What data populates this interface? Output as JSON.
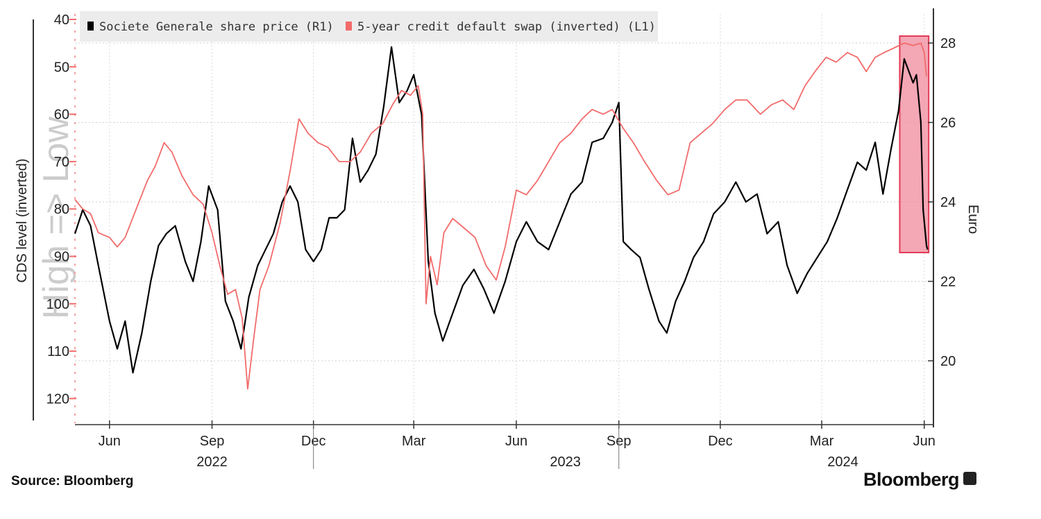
{
  "chart_data": {
    "type": "line",
    "axes": {
      "left": {
        "label": "CDS level (inverted)",
        "inverted": true,
        "range": [
          40,
          125
        ],
        "ticks": [
          40,
          50,
          60,
          70,
          80,
          90,
          100,
          110,
          120
        ]
      },
      "right": {
        "label": "Euro",
        "range": [
          18.2,
          28.8
        ],
        "ticks": [
          20,
          22,
          24,
          26,
          28
        ]
      },
      "x": {
        "range": [
          "2022-05-01",
          "2024-06-08"
        ],
        "month_ticks": [
          {
            "date": "2022-06-01",
            "label": "Jun"
          },
          {
            "date": "2022-09-01",
            "label": "Sep"
          },
          {
            "date": "2022-12-01",
            "label": "Dec"
          },
          {
            "date": "2023-03-01",
            "label": "Mar"
          },
          {
            "date": "2023-06-01",
            "label": "Jun"
          },
          {
            "date": "2023-09-01",
            "label": "Sep"
          },
          {
            "date": "2023-12-01",
            "label": "Dec"
          },
          {
            "date": "2024-03-01",
            "label": "Mar"
          },
          {
            "date": "2024-06-01",
            "label": "Jun"
          }
        ],
        "year_labels": [
          {
            "date": "2022-09-01",
            "label": "2022"
          },
          {
            "date": "2023-07-15",
            "label": "2023"
          },
          {
            "date": "2024-03-20",
            "label": "2024"
          }
        ],
        "year_dividers": [
          "2022-12-01",
          "2023-09-01"
        ]
      }
    },
    "watermark": "High => Low",
    "legend": {
      "placement": "top-left"
    },
    "grid": true,
    "highlight": {
      "x_range": [
        "2024-05-10",
        "2024-06-05"
      ],
      "color": "#f08a9c"
    },
    "series": [
      {
        "name": "Societe Generale share price (R1)",
        "axis": "right",
        "color": "#000000",
        "points": [
          [
            "2022-05-01",
            23.2
          ],
          [
            "2022-05-08",
            23.8
          ],
          [
            "2022-05-15",
            23.4
          ],
          [
            "2022-05-22",
            22.4
          ],
          [
            "2022-06-01",
            21.0
          ],
          [
            "2022-06-08",
            20.3
          ],
          [
            "2022-06-15",
            21.0
          ],
          [
            "2022-06-22",
            19.7
          ],
          [
            "2022-06-30",
            20.7
          ],
          [
            "2022-07-08",
            22.0
          ],
          [
            "2022-07-15",
            22.9
          ],
          [
            "2022-07-22",
            23.2
          ],
          [
            "2022-07-30",
            23.4
          ],
          [
            "2022-08-08",
            22.5
          ],
          [
            "2022-08-15",
            22.0
          ],
          [
            "2022-08-22",
            23.0
          ],
          [
            "2022-08-29",
            24.4
          ],
          [
            "2022-09-06",
            23.8
          ],
          [
            "2022-09-13",
            21.5
          ],
          [
            "2022-09-20",
            21.0
          ],
          [
            "2022-09-27",
            20.3
          ],
          [
            "2022-10-04",
            21.6
          ],
          [
            "2022-10-12",
            22.4
          ],
          [
            "2022-10-19",
            22.8
          ],
          [
            "2022-10-26",
            23.2
          ],
          [
            "2022-11-03",
            24.0
          ],
          [
            "2022-11-10",
            24.4
          ],
          [
            "2022-11-17",
            24.0
          ],
          [
            "2022-11-24",
            22.8
          ],
          [
            "2022-12-01",
            22.5
          ],
          [
            "2022-12-08",
            22.8
          ],
          [
            "2022-12-15",
            23.6
          ],
          [
            "2022-12-22",
            23.6
          ],
          [
            "2022-12-29",
            23.8
          ],
          [
            "2023-01-05",
            25.6
          ],
          [
            "2023-01-12",
            24.5
          ],
          [
            "2023-01-19",
            24.8
          ],
          [
            "2023-01-26",
            25.2
          ],
          [
            "2023-02-02",
            26.4
          ],
          [
            "2023-02-09",
            27.9
          ],
          [
            "2023-02-16",
            26.5
          ],
          [
            "2023-02-23",
            26.8
          ],
          [
            "2023-03-01",
            27.2
          ],
          [
            "2023-03-08",
            26.2
          ],
          [
            "2023-03-14",
            22.5
          ],
          [
            "2023-03-20",
            21.2
          ],
          [
            "2023-03-27",
            20.5
          ],
          [
            "2023-04-05",
            21.2
          ],
          [
            "2023-04-14",
            21.9
          ],
          [
            "2023-04-24",
            22.3
          ],
          [
            "2023-05-03",
            21.8
          ],
          [
            "2023-05-12",
            21.2
          ],
          [
            "2023-05-22",
            22.0
          ],
          [
            "2023-06-01",
            23.0
          ],
          [
            "2023-06-10",
            23.5
          ],
          [
            "2023-06-20",
            23.0
          ],
          [
            "2023-06-30",
            22.8
          ],
          [
            "2023-07-10",
            23.5
          ],
          [
            "2023-07-20",
            24.2
          ],
          [
            "2023-07-30",
            24.5
          ],
          [
            "2023-08-08",
            25.5
          ],
          [
            "2023-08-18",
            25.6
          ],
          [
            "2023-08-26",
            26.0
          ],
          [
            "2023-09-01",
            26.5
          ],
          [
            "2023-09-05",
            23.0
          ],
          [
            "2023-09-12",
            22.8
          ],
          [
            "2023-09-20",
            22.6
          ],
          [
            "2023-09-28",
            21.8
          ],
          [
            "2023-10-07",
            21.0
          ],
          [
            "2023-10-14",
            20.7
          ],
          [
            "2023-10-22",
            21.5
          ],
          [
            "2023-10-30",
            22.0
          ],
          [
            "2023-11-07",
            22.6
          ],
          [
            "2023-11-16",
            23.0
          ],
          [
            "2023-11-25",
            23.7
          ],
          [
            "2023-12-05",
            24.0
          ],
          [
            "2023-12-15",
            24.5
          ],
          [
            "2023-12-24",
            24.0
          ],
          [
            "2024-01-03",
            24.2
          ],
          [
            "2024-01-12",
            23.2
          ],
          [
            "2024-01-22",
            23.5
          ],
          [
            "2024-01-30",
            22.4
          ],
          [
            "2024-02-08",
            21.7
          ],
          [
            "2024-02-17",
            22.2
          ],
          [
            "2024-02-26",
            22.6
          ],
          [
            "2024-03-06",
            23.0
          ],
          [
            "2024-03-15",
            23.6
          ],
          [
            "2024-03-24",
            24.3
          ],
          [
            "2024-04-02",
            25.0
          ],
          [
            "2024-04-10",
            24.8
          ],
          [
            "2024-04-18",
            25.5
          ],
          [
            "2024-04-25",
            24.2
          ],
          [
            "2024-05-02",
            25.3
          ],
          [
            "2024-05-09",
            26.3
          ],
          [
            "2024-05-14",
            27.6
          ],
          [
            "2024-05-18",
            27.3
          ],
          [
            "2024-05-22",
            27.0
          ],
          [
            "2024-05-25",
            27.2
          ],
          [
            "2024-05-29",
            26.0
          ],
          [
            "2024-05-31",
            23.8
          ],
          [
            "2024-06-03",
            22.9
          ],
          [
            "2024-06-04",
            22.8
          ]
        ]
      },
      {
        "name": "5-year credit default swap (inverted) (L1)",
        "axis": "left",
        "color": "#f26b6b",
        "points": [
          [
            "2022-05-01",
            78
          ],
          [
            "2022-05-08",
            80
          ],
          [
            "2022-05-15",
            81
          ],
          [
            "2022-05-22",
            85
          ],
          [
            "2022-06-01",
            86
          ],
          [
            "2022-06-08",
            88
          ],
          [
            "2022-06-15",
            86
          ],
          [
            "2022-06-25",
            80
          ],
          [
            "2022-07-05",
            74
          ],
          [
            "2022-07-12",
            71
          ],
          [
            "2022-07-20",
            66
          ],
          [
            "2022-07-27",
            68
          ],
          [
            "2022-08-05",
            73
          ],
          [
            "2022-08-15",
            77
          ],
          [
            "2022-08-24",
            79
          ],
          [
            "2022-09-01",
            85
          ],
          [
            "2022-09-08",
            92
          ],
          [
            "2022-09-15",
            98
          ],
          [
            "2022-09-22",
            97
          ],
          [
            "2022-09-28",
            103
          ],
          [
            "2022-10-03",
            118
          ],
          [
            "2022-10-08",
            108
          ],
          [
            "2022-10-14",
            97
          ],
          [
            "2022-10-22",
            92
          ],
          [
            "2022-11-01",
            83
          ],
          [
            "2022-11-10",
            72
          ],
          [
            "2022-11-18",
            61
          ],
          [
            "2022-11-26",
            64
          ],
          [
            "2022-12-05",
            66
          ],
          [
            "2022-12-14",
            67
          ],
          [
            "2022-12-24",
            70
          ],
          [
            "2023-01-03",
            70
          ],
          [
            "2023-01-12",
            68
          ],
          [
            "2023-01-22",
            64
          ],
          [
            "2023-02-01",
            62
          ],
          [
            "2023-02-10",
            58
          ],
          [
            "2023-02-18",
            55
          ],
          [
            "2023-02-26",
            56
          ],
          [
            "2023-03-05",
            54
          ],
          [
            "2023-03-09",
            60
          ],
          [
            "2023-03-12",
            100
          ],
          [
            "2023-03-16",
            90
          ],
          [
            "2023-03-22",
            96
          ],
          [
            "2023-03-28",
            85
          ],
          [
            "2023-04-05",
            82
          ],
          [
            "2023-04-15",
            84
          ],
          [
            "2023-04-25",
            86
          ],
          [
            "2023-05-05",
            92
          ],
          [
            "2023-05-14",
            95
          ],
          [
            "2023-05-22",
            88
          ],
          [
            "2023-06-01",
            76
          ],
          [
            "2023-06-10",
            77
          ],
          [
            "2023-06-20",
            74
          ],
          [
            "2023-06-30",
            70
          ],
          [
            "2023-07-10",
            66
          ],
          [
            "2023-07-20",
            64
          ],
          [
            "2023-07-30",
            61
          ],
          [
            "2023-08-08",
            59
          ],
          [
            "2023-08-18",
            60
          ],
          [
            "2023-08-26",
            59
          ],
          [
            "2023-09-05",
            63
          ],
          [
            "2023-09-14",
            66
          ],
          [
            "2023-09-24",
            70
          ],
          [
            "2023-10-05",
            74
          ],
          [
            "2023-10-15",
            77
          ],
          [
            "2023-10-25",
            76
          ],
          [
            "2023-11-04",
            66
          ],
          [
            "2023-11-14",
            64
          ],
          [
            "2023-11-24",
            62
          ],
          [
            "2023-12-05",
            59
          ],
          [
            "2023-12-15",
            57
          ],
          [
            "2023-12-25",
            57
          ],
          [
            "2024-01-06",
            60
          ],
          [
            "2024-01-16",
            58
          ],
          [
            "2024-01-26",
            57
          ],
          [
            "2024-02-05",
            59
          ],
          [
            "2024-02-15",
            54
          ],
          [
            "2024-02-24",
            51
          ],
          [
            "2024-03-05",
            48
          ],
          [
            "2024-03-14",
            49
          ],
          [
            "2024-03-24",
            47
          ],
          [
            "2024-04-02",
            48
          ],
          [
            "2024-04-10",
            51
          ],
          [
            "2024-04-18",
            48
          ],
          [
            "2024-04-26",
            47
          ],
          [
            "2024-05-05",
            46
          ],
          [
            "2024-05-14",
            45
          ],
          [
            "2024-05-22",
            45.5
          ],
          [
            "2024-05-29",
            45
          ],
          [
            "2024-06-01",
            47
          ],
          [
            "2024-06-03",
            52
          ]
        ]
      }
    ]
  },
  "footer": {
    "source": "Source:  Bloomberg",
    "brand": "Bloomberg"
  }
}
